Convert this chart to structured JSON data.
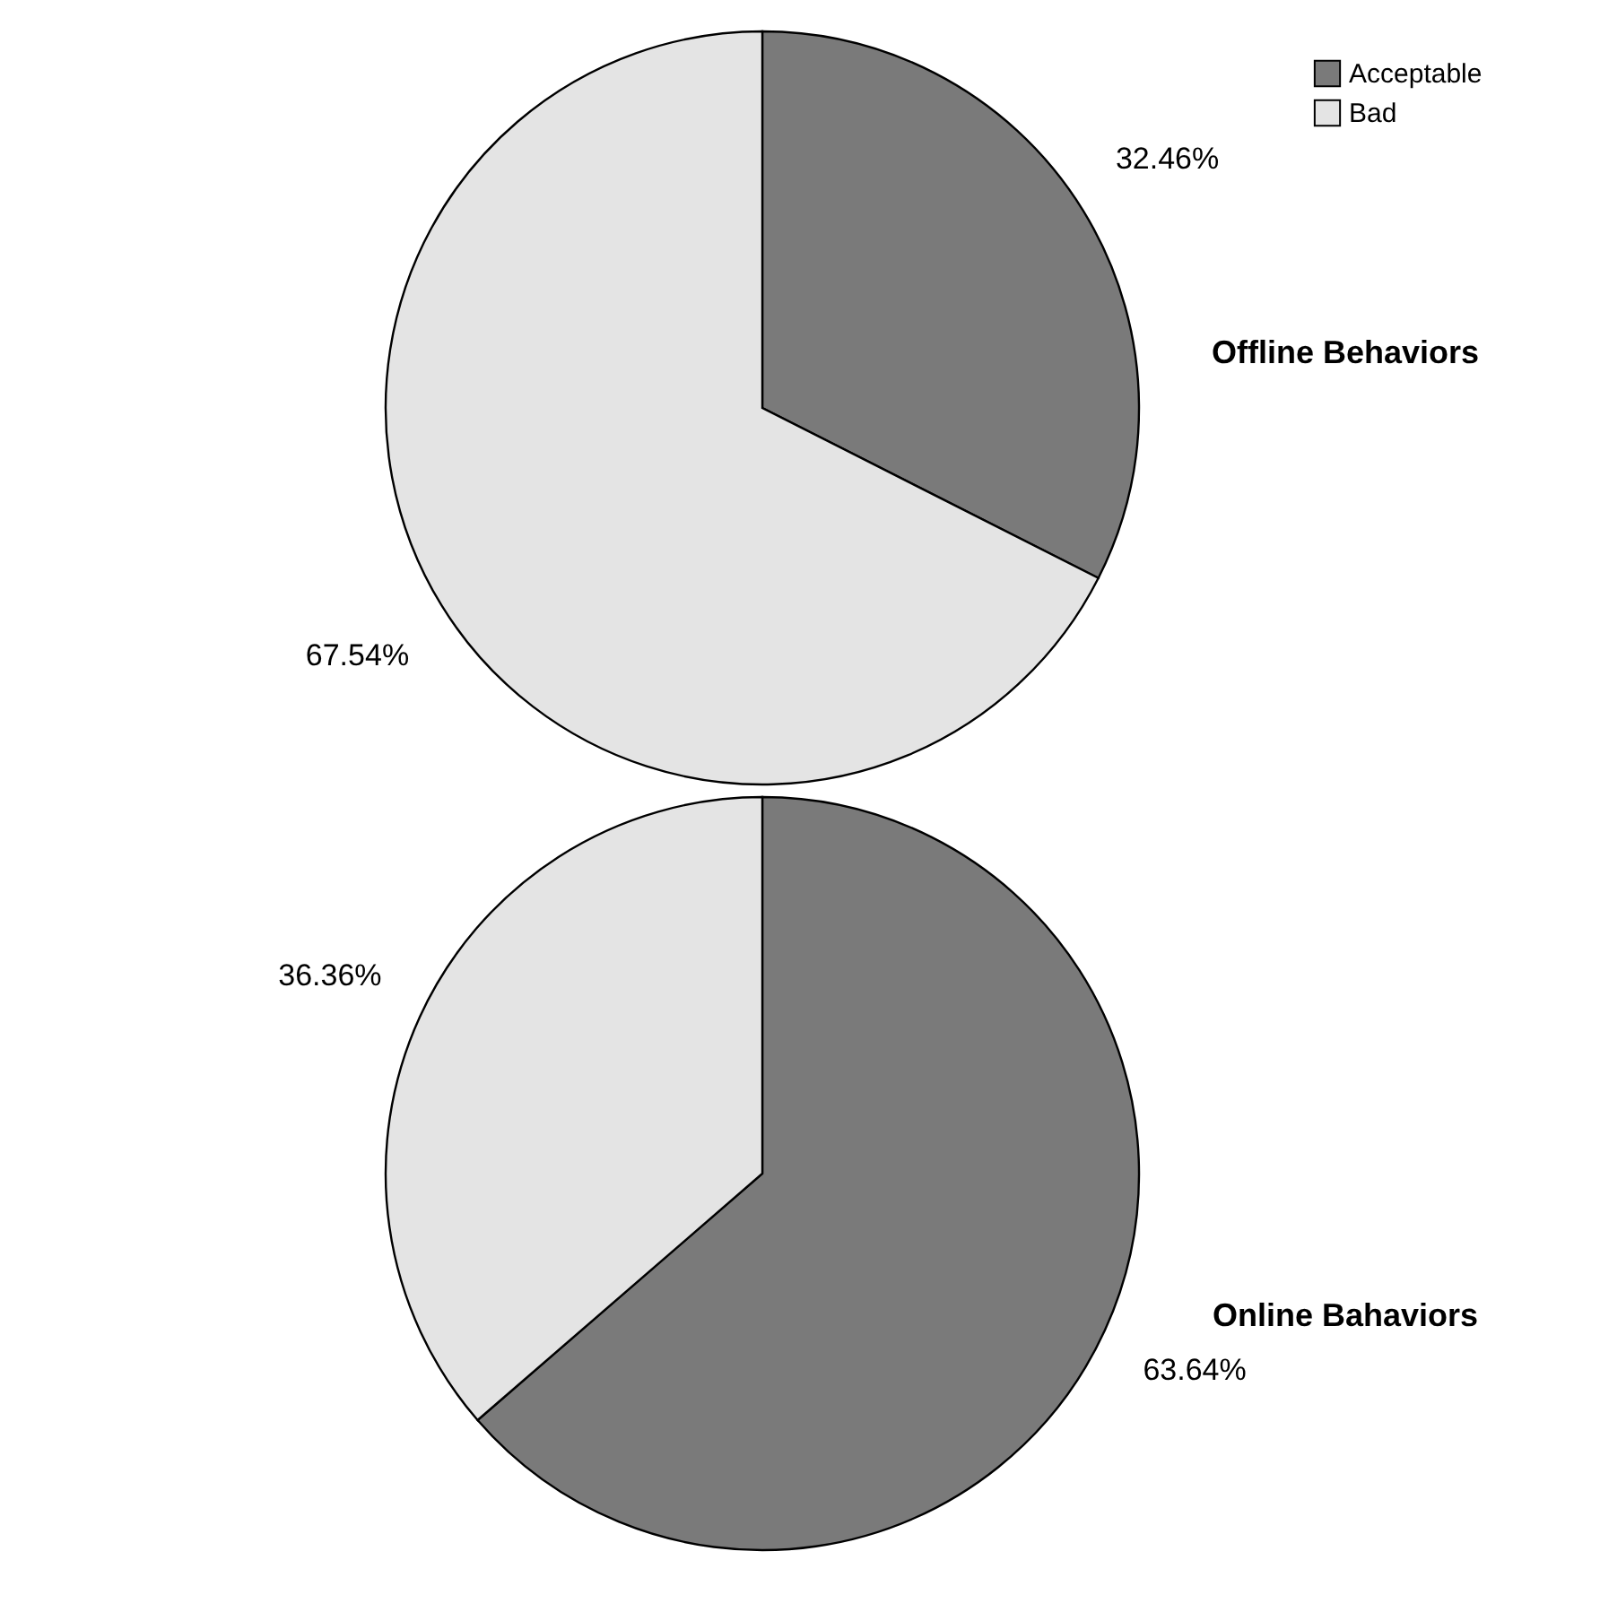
{
  "chart_data": [
    {
      "type": "pie",
      "title": "Offline Behaviors",
      "categories": [
        "Acceptable",
        "Bad"
      ],
      "values": [
        32.46,
        67.54
      ],
      "colors": [
        "#7a7a7a",
        "#e4e4e4"
      ],
      "value_labels": [
        "32.46%",
        "67.54%"
      ],
      "legend": "top right"
    },
    {
      "type": "pie",
      "title": "Online Bahaviors",
      "categories": [
        null,
        null
      ],
      "values": [
        63.64,
        36.36
      ],
      "colors": [
        "#7a7a7a",
        "#e4e4e4"
      ],
      "value_labels": [
        "63.64%",
        "36.36%"
      ],
      "legend": false
    }
  ]
}
